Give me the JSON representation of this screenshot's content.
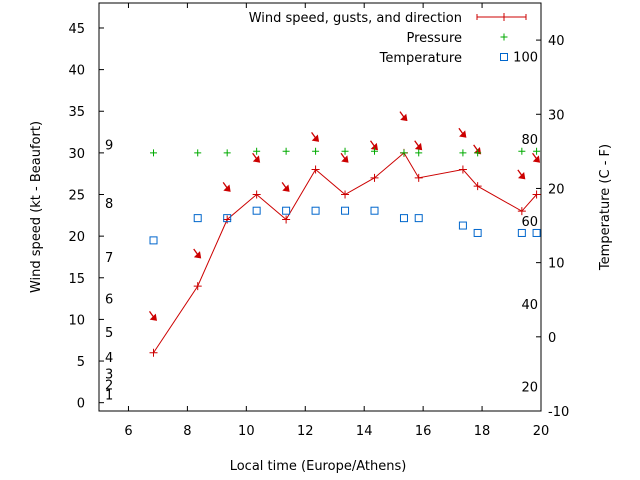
{
  "chart_data": {
    "type": "line",
    "xlabel": "Local time (Europe/Athens)",
    "ylabel": "Wind speed (kt - Beaufort)",
    "y2label": "Temperature (C - F)",
    "xlim": [
      5,
      20
    ],
    "ylim": [
      -1,
      48
    ],
    "y2lim": [
      -10,
      45
    ],
    "x_ticks": [
      6,
      8,
      10,
      12,
      14,
      16,
      18,
      20
    ],
    "y_ticks": [
      0,
      5,
      10,
      15,
      20,
      25,
      30,
      35,
      40,
      45
    ],
    "y2_ticks": [
      -10,
      0,
      10,
      20,
      30,
      40
    ],
    "beaufort_labels": [
      {
        "y": 1,
        "label": "1"
      },
      {
        "y": 2.2,
        "label": "2"
      },
      {
        "y": 3.5,
        "label": "3"
      },
      {
        "y": 5.5,
        "label": "4"
      },
      {
        "y": 8.5,
        "label": "5"
      },
      {
        "y": 12.5,
        "label": "6"
      },
      {
        "y": 17.5,
        "label": "7"
      },
      {
        "y": 24,
        "label": "8"
      },
      {
        "y": 31,
        "label": "9"
      }
    ],
    "fahrenheit_labels": [
      {
        "y2": -6.7,
        "label": "20"
      },
      {
        "y2": 4.4,
        "label": "40"
      },
      {
        "y2": 15.6,
        "label": "60"
      },
      {
        "y2": 26.7,
        "label": "80"
      },
      {
        "y2": 37.8,
        "label": "100"
      }
    ],
    "series": [
      {
        "name": "Wind speed, gusts, and direction",
        "axis": "y",
        "color": "#cc0000",
        "points": [
          {
            "x": 6.85,
            "y": 6
          },
          {
            "x": 8.35,
            "y": 14
          },
          {
            "x": 9.35,
            "y": 22
          },
          {
            "x": 10.35,
            "y": 25
          },
          {
            "x": 11.35,
            "y": 22
          },
          {
            "x": 12.35,
            "y": 28
          },
          {
            "x": 13.35,
            "y": 25
          },
          {
            "x": 14.35,
            "y": 27
          },
          {
            "x": 15.35,
            "y": 30
          },
          {
            "x": 15.85,
            "y": 27
          },
          {
            "x": 17.35,
            "y": 28
          },
          {
            "x": 17.85,
            "y": 26
          },
          {
            "x": 19.35,
            "y": 23
          },
          {
            "x": 19.85,
            "y": 25
          }
        ],
        "direction_arrows_y": [
          10,
          17.5,
          25.5,
          29,
          25.5,
          31.5,
          29,
          30.5,
          34,
          30.5,
          32,
          30,
          27,
          29
        ]
      },
      {
        "name": "Pressure",
        "axis": "y",
        "color": "#00aa00",
        "points": [
          {
            "x": 6.85,
            "y": 30
          },
          {
            "x": 8.35,
            "y": 30
          },
          {
            "x": 9.35,
            "y": 30
          },
          {
            "x": 10.35,
            "y": 30.2
          },
          {
            "x": 11.35,
            "y": 30.2
          },
          {
            "x": 12.35,
            "y": 30.2
          },
          {
            "x": 13.35,
            "y": 30.2
          },
          {
            "x": 14.35,
            "y": 30.2
          },
          {
            "x": 15.35,
            "y": 30
          },
          {
            "x": 15.85,
            "y": 30
          },
          {
            "x": 17.35,
            "y": 30
          },
          {
            "x": 17.85,
            "y": 30
          },
          {
            "x": 19.35,
            "y": 30.2
          },
          {
            "x": 19.85,
            "y": 30.2
          }
        ]
      },
      {
        "name": "Temperature",
        "axis": "y2",
        "color": "#0066cc",
        "points": [
          {
            "x": 6.85,
            "y2": 13
          },
          {
            "x": 8.35,
            "y2": 16
          },
          {
            "x": 9.35,
            "y2": 16
          },
          {
            "x": 10.35,
            "y2": 17
          },
          {
            "x": 11.35,
            "y2": 17
          },
          {
            "x": 12.35,
            "y2": 17
          },
          {
            "x": 13.35,
            "y2": 17
          },
          {
            "x": 14.35,
            "y2": 17
          },
          {
            "x": 15.35,
            "y2": 16
          },
          {
            "x": 15.85,
            "y2": 16
          },
          {
            "x": 17.35,
            "y2": 15
          },
          {
            "x": 17.85,
            "y2": 14
          },
          {
            "x": 19.35,
            "y2": 14
          },
          {
            "x": 19.85,
            "y2": 14
          }
        ]
      }
    ],
    "legend_position": "top-right",
    "grid": false
  }
}
